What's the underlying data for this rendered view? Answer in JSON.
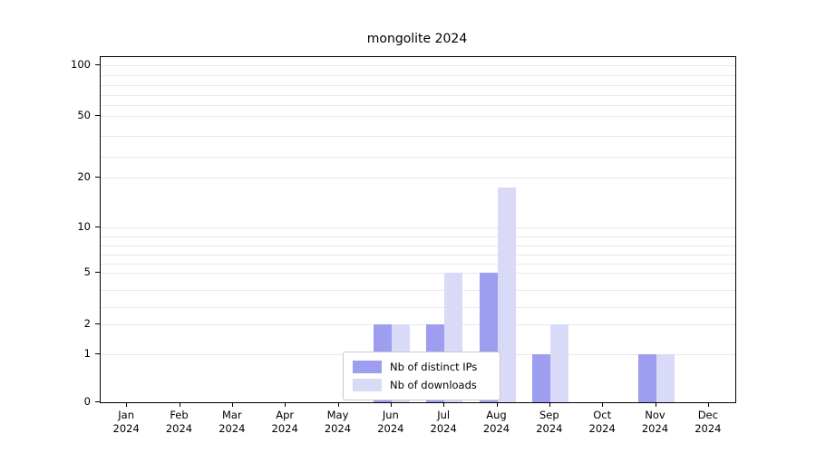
{
  "chart_data": {
    "type": "bar",
    "title": "mongolite 2024",
    "categories": [
      {
        "month": "Jan",
        "year": "2024"
      },
      {
        "month": "Feb",
        "year": "2024"
      },
      {
        "month": "Mar",
        "year": "2024"
      },
      {
        "month": "Apr",
        "year": "2024"
      },
      {
        "month": "May",
        "year": "2024"
      },
      {
        "month": "Jun",
        "year": "2024"
      },
      {
        "month": "Jul",
        "year": "2024"
      },
      {
        "month": "Aug",
        "year": "2024"
      },
      {
        "month": "Sep",
        "year": "2024"
      },
      {
        "month": "Oct",
        "year": "2024"
      },
      {
        "month": "Nov",
        "year": "2024"
      },
      {
        "month": "Dec",
        "year": "2024"
      }
    ],
    "series": [
      {
        "name": "Nb of distinct IPs",
        "color": "#9e9ef0",
        "values": [
          0,
          0,
          0,
          0,
          0,
          2,
          2,
          5,
          1,
          0,
          1,
          0
        ]
      },
      {
        "name": "Nb of downloads",
        "color": "#d9d9f8",
        "values": [
          0,
          0,
          0,
          0,
          0,
          2,
          5,
          18,
          2,
          0,
          1,
          0
        ]
      }
    ],
    "y_axis": {
      "tick_values": [
        0,
        1,
        2,
        5,
        10,
        20,
        50,
        100
      ],
      "minor_grid_values": [
        1,
        2,
        3,
        4,
        5,
        6,
        7,
        8,
        9,
        10,
        20,
        30,
        40,
        50,
        60,
        70,
        80,
        90,
        100
      ],
      "scale": "log-like",
      "range_bottom": 0,
      "range_top": 100
    },
    "grid": true,
    "legend_position": "bottom-center"
  }
}
